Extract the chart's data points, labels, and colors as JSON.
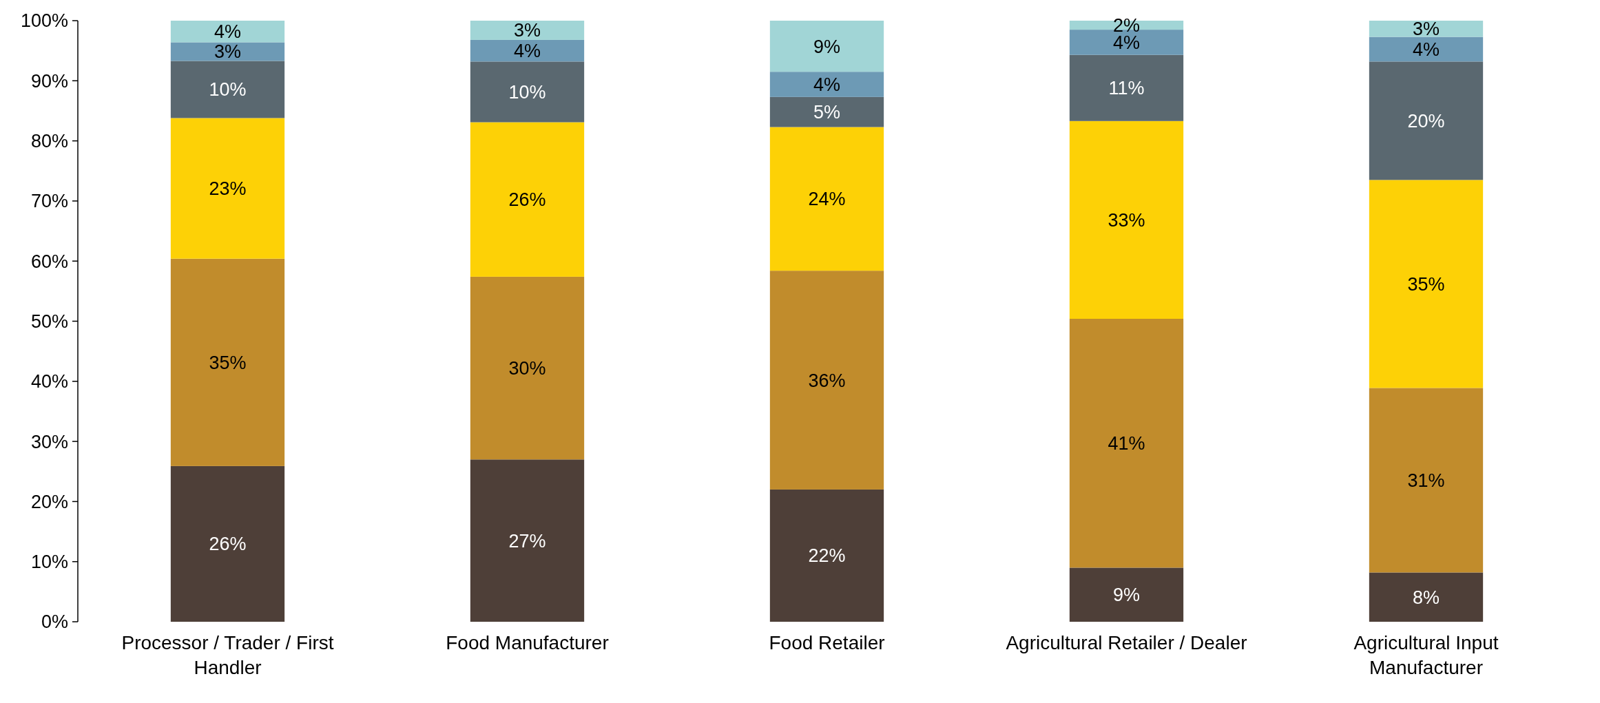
{
  "chart_data": {
    "type": "bar",
    "stacked": true,
    "categories": [
      "Processor / Trader / First Handler",
      "Food Manufacturer",
      "Food Retailer",
      "Agricultural Retailer / Dealer",
      "Agricultural Input Manufacturer"
    ],
    "series": [
      {
        "color": "#4e3f38",
        "values": [
          25.9,
          27.0,
          22.0,
          9.0,
          8.2
        ],
        "value_labels": [
          "26%",
          "27%",
          "22%",
          "9%",
          "8%"
        ]
      },
      {
        "color": "#c18c2c",
        "values": [
          34.5,
          30.4,
          36.4,
          41.4,
          30.7
        ],
        "value_labels": [
          "35%",
          "30%",
          "36%",
          "41%",
          "31%"
        ]
      },
      {
        "color": "#fdd106",
        "values": [
          23.4,
          25.7,
          23.9,
          32.9,
          34.6
        ],
        "value_labels": [
          "23%",
          "26%",
          "24%",
          "33%",
          "35%"
        ]
      },
      {
        "color": "#5a6870",
        "values": [
          9.5,
          10.1,
          5.0,
          11.0,
          19.7
        ],
        "value_labels": [
          "10%",
          "10%",
          "5%",
          "11%",
          "20%"
        ]
      },
      {
        "color": "#6d9ab5",
        "values": [
          3.1,
          3.6,
          4.2,
          4.2,
          4.1
        ],
        "value_labels": [
          "3%",
          "4%",
          "4%",
          "4%",
          "4%"
        ]
      },
      {
        "color": "#a1d5d6",
        "values": [
          3.6,
          3.2,
          8.5,
          1.5,
          2.7
        ],
        "value_labels": [
          "4%",
          "3%",
          "9%",
          "2%",
          "3%"
        ]
      }
    ],
    "ylim": [
      0,
      100
    ],
    "yticks": [
      {
        "value": 0,
        "label": "0%"
      },
      {
        "value": 10,
        "label": "10%"
      },
      {
        "value": 20,
        "label": "20%"
      },
      {
        "value": 30,
        "label": "30%"
      },
      {
        "value": 40,
        "label": "40%"
      },
      {
        "value": 50,
        "label": "50%"
      },
      {
        "value": 60,
        "label": "60%"
      },
      {
        "value": 70,
        "label": "70%"
      },
      {
        "value": 80,
        "label": "80%"
      },
      {
        "value": 90,
        "label": "90%"
      },
      {
        "value": 100,
        "label": "100%"
      }
    ],
    "grid": false
  }
}
